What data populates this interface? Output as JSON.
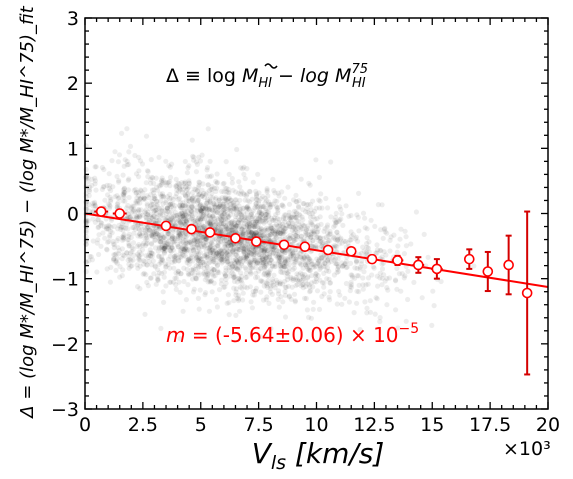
{
  "chart_data": {
    "type": "scatter",
    "xlabel": "V_ls [km/s]",
    "ylabel": "Δ = (log M*/M_HI^75) − (log M*/M_HI^75)_fit",
    "x_multiplier": "×10³",
    "xlim": [
      0,
      20
    ],
    "ylim": [
      -3,
      3
    ],
    "x_ticks": [
      "0",
      "2.5",
      "5",
      "7.5",
      "10",
      "12.5",
      "15",
      "17.5",
      "20"
    ],
    "y_ticks": [
      "−3",
      "−2",
      "−1",
      "0",
      "1",
      "2",
      "3"
    ],
    "annotation_definition": {
      "lhs": "Δ ≡ log ",
      "term1": "M",
      "term1_sub": "HI",
      "minus": " − log ",
      "term2": "M",
      "term2_sub": "HI",
      "term2_sup": "75"
    },
    "annotation_slope": {
      "prefix": "m",
      "text": " = (-5.64±0.06) × 10",
      "exponent": "−5"
    },
    "colors": {
      "points": "#000000",
      "binned": "#ff0000",
      "fit": "#ff0000"
    },
    "fit_line": {
      "slope": -0.0564,
      "intercept": 0.0,
      "x_range": [
        0,
        20
      ]
    },
    "binned": [
      {
        "x": 0.7,
        "y": 0.03,
        "yerr": 0.04,
        "xerr": 0.3
      },
      {
        "x": 1.5,
        "y": 0.0,
        "yerr": 0.03,
        "xerr": 0.3
      },
      {
        "x": 3.5,
        "y": -0.19,
        "yerr": 0.03,
        "xerr": 0.2
      },
      {
        "x": 4.6,
        "y": -0.24,
        "yerr": 0.03,
        "xerr": 0.2
      },
      {
        "x": 5.4,
        "y": -0.29,
        "yerr": 0.03,
        "xerr": 0.2
      },
      {
        "x": 6.5,
        "y": -0.38,
        "yerr": 0.03,
        "xerr": 0.2
      },
      {
        "x": 7.4,
        "y": -0.43,
        "yerr": 0.03,
        "xerr": 0.2
      },
      {
        "x": 8.6,
        "y": -0.48,
        "yerr": 0.03,
        "xerr": 0.2
      },
      {
        "x": 9.5,
        "y": -0.51,
        "yerr": 0.03,
        "xerr": 0.2
      },
      {
        "x": 10.5,
        "y": -0.56,
        "yerr": 0.04,
        "xerr": 0.2
      },
      {
        "x": 11.5,
        "y": -0.58,
        "yerr": 0.05,
        "xerr": 0.2
      },
      {
        "x": 12.4,
        "y": -0.7,
        "yerr": 0.05,
        "xerr": 0.2
      },
      {
        "x": 13.5,
        "y": -0.72,
        "yerr": 0.07,
        "xerr": 0.25
      },
      {
        "x": 14.4,
        "y": -0.79,
        "yerr": 0.12,
        "xerr": 0.25
      },
      {
        "x": 15.2,
        "y": -0.85,
        "yerr": 0.15,
        "xerr": 0.25
      },
      {
        "x": 16.6,
        "y": -0.7,
        "yerr": 0.15,
        "xerr": 0.2
      },
      {
        "x": 17.4,
        "y": -0.89,
        "yerr": 0.3,
        "xerr": 0.2
      },
      {
        "x": 18.3,
        "y": -0.79,
        "yerr": 0.45,
        "xerr": 0.0
      },
      {
        "x": 19.1,
        "y": -1.22,
        "yerr": 1.25,
        "xerr": 0.0
      }
    ]
  }
}
